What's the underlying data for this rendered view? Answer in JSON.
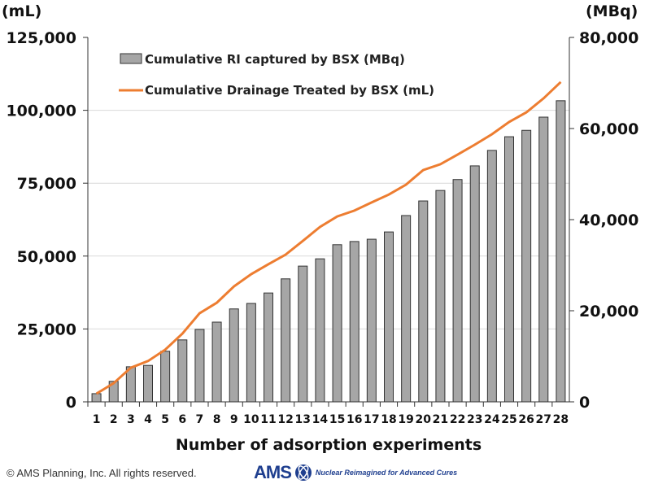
{
  "chart_data": {
    "type": "bar+line",
    "xlabel": "Number of adsorption experiments",
    "ylabel_left": "(mL)",
    "ylabel_right": "(MBq)",
    "categories": [
      "1",
      "2",
      "3",
      "4",
      "5",
      "6",
      "7",
      "8",
      "9",
      "10",
      "11",
      "12",
      "13",
      "14",
      "15",
      "16",
      "17",
      "18",
      "19",
      "20",
      "21",
      "22",
      "23",
      "24",
      "25",
      "26",
      "27",
      "28"
    ],
    "ylim_left": [
      0,
      125000
    ],
    "yticks_left": [
      "0",
      "25,000",
      "50,000",
      "75,000",
      "100,000",
      "125,000"
    ],
    "ylim_right": [
      0,
      80000
    ],
    "yticks_right": [
      "0",
      "20,000",
      "40,000",
      "60,000",
      "80,000"
    ],
    "grid": true,
    "legend_placement": "top-left",
    "series": [
      {
        "name": "Cumulative RI captured by BSX (MBq)",
        "type": "bar",
        "axis": "right",
        "color": "#a6a6a6",
        "values": [
          1800,
          4500,
          7700,
          8000,
          11100,
          13600,
          15900,
          17500,
          20400,
          21600,
          23900,
          27000,
          29800,
          31400,
          34500,
          35200,
          35700,
          37300,
          40900,
          44100,
          46400,
          48800,
          51800,
          55200,
          58200,
          59600,
          62500,
          66100
        ]
      },
      {
        "name": "Cumulative Drainage Treated by BSX (mL)",
        "type": "line",
        "axis": "left",
        "color": "#ed7d31",
        "values": [
          2800,
          6400,
          11700,
          14000,
          17900,
          23400,
          30400,
          34000,
          39600,
          43800,
          47200,
          50500,
          55200,
          60000,
          63600,
          65600,
          68400,
          71100,
          74500,
          79500,
          81500,
          84800,
          88200,
          91800,
          96000,
          99300,
          104100,
          109700
        ]
      }
    ]
  },
  "footer": {
    "copyright": "© AMS Planning, Inc. All rights reserved.",
    "logo_text": "AMS",
    "tagline": "Nuclear Reimagined for Advanced Cures"
  }
}
